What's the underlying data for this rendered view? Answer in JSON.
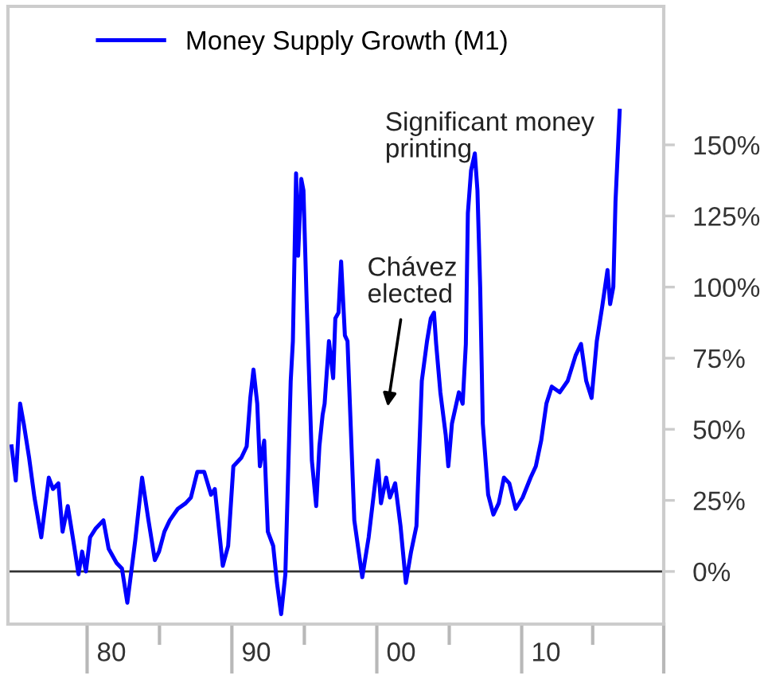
{
  "chart_data": {
    "type": "line",
    "x": [
      1973.11,
      1973.4,
      1973.7,
      1973.95,
      1974.32,
      1974.69,
      1975.16,
      1975.68,
      1975.97,
      1976.34,
      1976.63,
      1976.99,
      1977.43,
      1977.73,
      1977.98,
      1978.24,
      1978.53,
      1978.9,
      1979.45,
      1979.81,
      1980.36,
      1980.73,
      1981.1,
      1981.65,
      1982.12,
      1982.56,
      1983.0,
      1983.29,
      1983.66,
      1984.03,
      1984.58,
      1985.13,
      1985.49,
      1985.93,
      1986.41,
      1986.88,
      1987.14,
      1987.69,
      1988.06,
      1988.42,
      1988.97,
      1989.34,
      1989.59,
      1989.81,
      1990.07,
      1990.25,
      1990.55,
      1990.8,
      1991.17,
      1991.43,
      1991.72,
      1992.01,
      1992.38,
      1992.53,
      1992.75,
      1992.89,
      1993.11,
      1993.26,
      1993.48,
      1993.84,
      1994.14,
      1994.36,
      1994.58,
      1994.72,
      1995.02,
      1995.31,
      1995.46,
      1995.68,
      1995.86,
      1996.12,
      1996.3,
      1996.77,
      1997.32,
      1997.76,
      1998.39,
      1998.61,
      1998.97,
      1999.23,
      1999.59,
      1999.96,
      2000.33,
      2000.69,
      2001.06,
      2001.43,
      2001.79,
      2002.05,
      2002.27,
      2002.42,
      2002.71,
      2003.08,
      2003.26,
      2003.51,
      2003.99,
      2004.25,
      2004.47,
      2004.61,
      2004.83,
      2005.09,
      2005.27,
      2005.46,
      2005.64,
      2006.01,
      2006.37,
      2006.74,
      2007.1,
      2007.47,
      2007.91,
      2008.39,
      2008.94,
      2009.3,
      2009.67,
      2010.03,
      2010.4,
      2010.95,
      2011.5,
      2012.05,
      2012.42,
      2012.78,
      2013.15,
      2013.51,
      2013.88,
      2014.25,
      2014.43,
      2014.65,
      2014.8,
      2015.09
    ],
    "series": [
      {
        "name": "Money Supply Growth (M1)",
        "color": "#0000ff",
        "values": [
          44,
          32,
          59,
          52,
          40,
          26,
          12,
          33,
          29,
          31,
          14,
          23,
          9,
          -1,
          7,
          0,
          12,
          15,
          18,
          8,
          3,
          1,
          -11,
          11,
          33,
          18,
          4,
          7,
          14,
          18,
          22,
          24,
          26,
          35,
          35,
          27,
          29,
          2,
          9,
          37,
          40,
          44,
          61,
          71,
          59,
          37,
          46,
          14,
          9,
          -4,
          -15,
          -1,
          67,
          81,
          140,
          111,
          138,
          134,
          95,
          39,
          23,
          44,
          55,
          59,
          81,
          68,
          89,
          91,
          109,
          83,
          81,
          18,
          -2,
          12,
          39,
          24,
          33,
          26,
          31,
          16,
          -4,
          7,
          16,
          67,
          81,
          89,
          91,
          80,
          63,
          48,
          37,
          52,
          63,
          59,
          80,
          126,
          141,
          147,
          134,
          100,
          52,
          27,
          20,
          24,
          33,
          31,
          22,
          26,
          33,
          37,
          46,
          59,
          65,
          63,
          67,
          76,
          80,
          67,
          61,
          81,
          93,
          106,
          94,
          100,
          130,
          162
        ]
      }
    ],
    "xlim": [
      1972.86,
      2018.13
    ],
    "xticks": [
      {
        "value": 1980,
        "label": "80"
      },
      {
        "value": 1990,
        "label": "90"
      },
      {
        "value": 2000,
        "label": "00"
      },
      {
        "value": 2010,
        "label": "10"
      }
    ],
    "ylim": [
      -18.5,
      198.7
    ],
    "yticks": [
      {
        "value": 0,
        "label": "0%"
      },
      {
        "value": 25,
        "label": "25%"
      },
      {
        "value": 50,
        "label": "50%"
      },
      {
        "value": 75,
        "label": "75%"
      },
      {
        "value": 100,
        "label": "100%"
      },
      {
        "value": 125,
        "label": "125%"
      },
      {
        "value": 150,
        "label": "150%"
      }
    ],
    "ref_lines": [
      {
        "axis": "y",
        "value": 0,
        "color": "#333333"
      }
    ],
    "annotations": [
      "Significant money\nprinting",
      "Chávez\nelected"
    ],
    "legend": "top",
    "grid": false,
    "marker": "none",
    "line_style": "solid"
  }
}
